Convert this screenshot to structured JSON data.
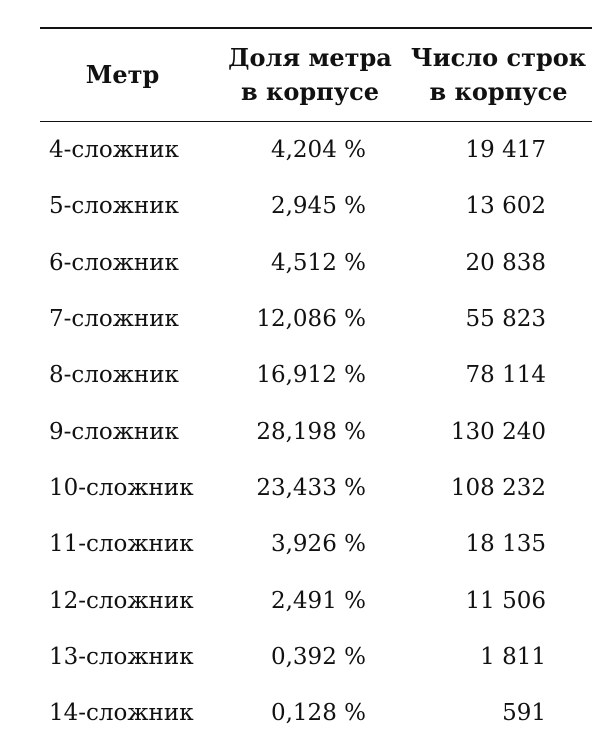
{
  "table": {
    "headers": {
      "meter": "Метр",
      "share_line1": "Доля метра",
      "share_line2": "в корпусе",
      "lines_line1": "Число строк",
      "lines_line2": "в корпусе"
    },
    "rows": [
      {
        "meter": "4-сложник",
        "share": "4,204 %",
        "lines": "19 417"
      },
      {
        "meter": "5-сложник",
        "share": "2,945 %",
        "lines": "13 602"
      },
      {
        "meter": "6-сложник",
        "share": "4,512 %",
        "lines": "20 838"
      },
      {
        "meter": "7-сложник",
        "share": "12,086 %",
        "lines": "55 823"
      },
      {
        "meter": "8-сложник",
        "share": "16,912 %",
        "lines": "78 114"
      },
      {
        "meter": "9-сложник",
        "share": "28,198 %",
        "lines": "130 240"
      },
      {
        "meter": "10-сложник",
        "share": "23,433 %",
        "lines": "108 232"
      },
      {
        "meter": "11-сложник",
        "share": "3,926 %",
        "lines": "18 135"
      },
      {
        "meter": "12-сложник",
        "share": "2,491 %",
        "lines": "11 506"
      },
      {
        "meter": "13-сложник",
        "share": "0,392 %",
        "lines": "1 811"
      },
      {
        "meter": "14-сложник",
        "share": "0,128 %",
        "lines": "591"
      }
    ]
  }
}
